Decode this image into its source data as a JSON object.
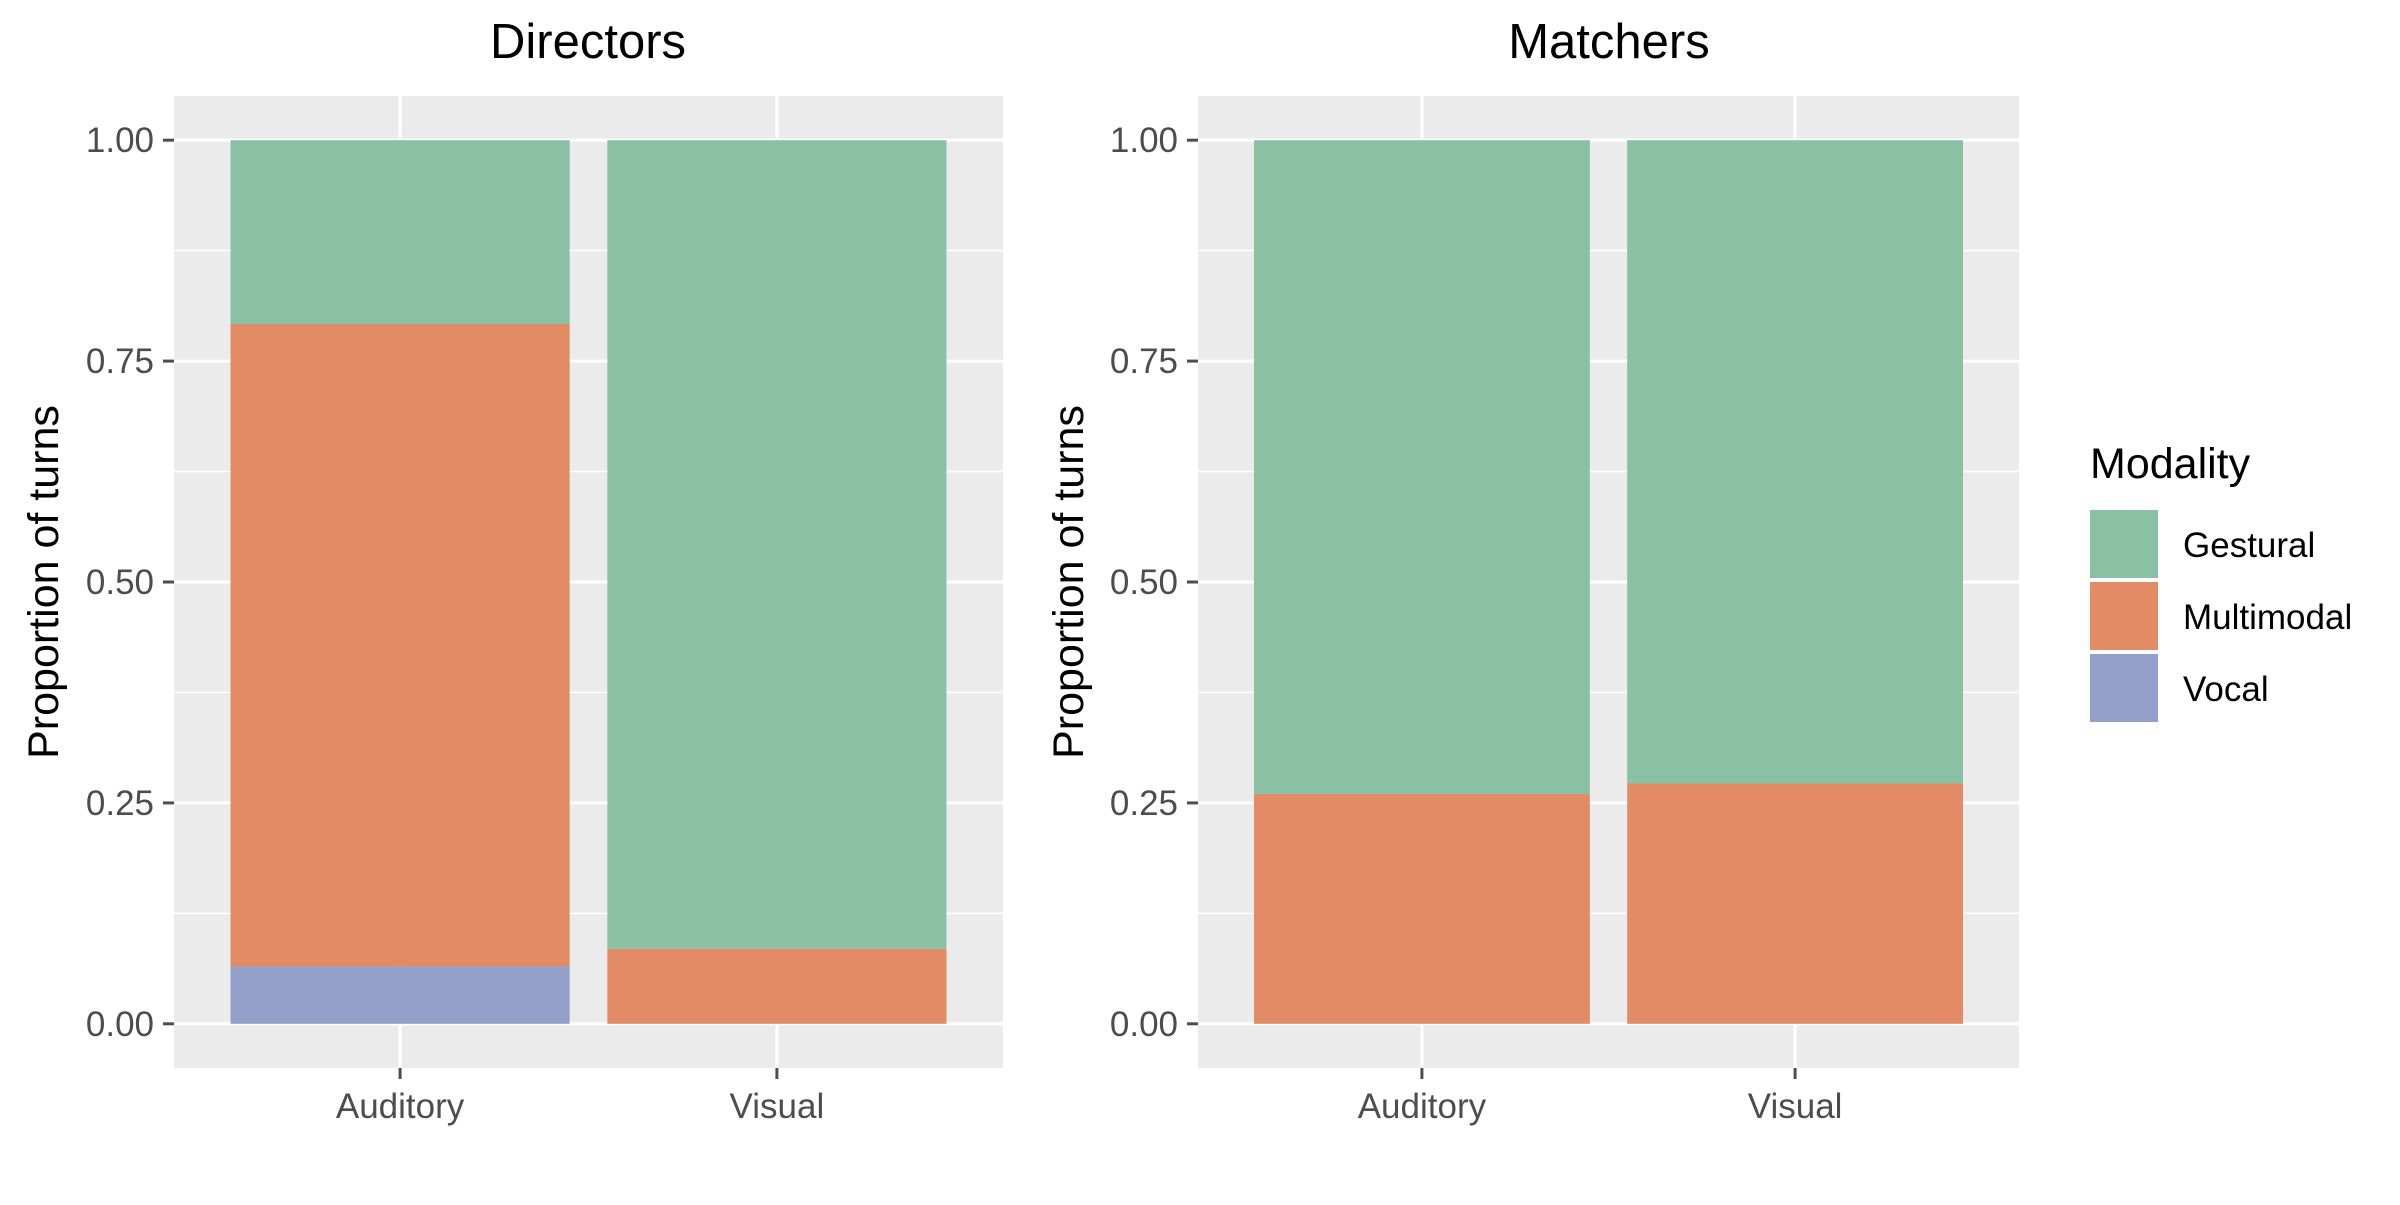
{
  "chart_data": [
    {
      "type": "bar",
      "stacked": true,
      "title": "Directors",
      "xlabel": "",
      "ylabel": "Proportion of turns",
      "categories": [
        "Auditory",
        "Visual"
      ],
      "series": [
        {
          "name": "Vocal",
          "values": [
            0.065,
            0.0
          ]
        },
        {
          "name": "Multimodal",
          "values": [
            0.727,
            0.085
          ]
        },
        {
          "name": "Gestural",
          "values": [
            0.208,
            0.915
          ]
        }
      ],
      "ylim": [
        -0.05,
        1.05
      ],
      "yticks": [
        "0.00",
        "0.25",
        "0.50",
        "0.75",
        "1.00"
      ],
      "grid": true
    },
    {
      "type": "bar",
      "stacked": true,
      "title": "Matchers",
      "xlabel": "",
      "ylabel": "Proportion of turns",
      "categories": [
        "Auditory",
        "Visual"
      ],
      "series": [
        {
          "name": "Vocal",
          "values": [
            0.0,
            0.0
          ]
        },
        {
          "name": "Multimodal",
          "values": [
            0.26,
            0.272
          ]
        },
        {
          "name": "Gestural",
          "values": [
            0.74,
            0.728
          ]
        }
      ],
      "ylim": [
        -0.05,
        1.05
      ],
      "yticks": [
        "0.00",
        "0.25",
        "0.50",
        "0.75",
        "1.00"
      ],
      "grid": true
    }
  ],
  "legend": {
    "title": "Modality",
    "position": "right",
    "items": [
      {
        "name": "Gestural",
        "color": "#8ac1a4"
      },
      {
        "name": "Multimodal",
        "color": "#e28b64"
      },
      {
        "name": "Vocal",
        "color": "#94a0c9"
      }
    ]
  },
  "colors": {
    "panel_background": "#ebebeb",
    "grid": "#ffffff",
    "tick": "#4d4d4d"
  }
}
